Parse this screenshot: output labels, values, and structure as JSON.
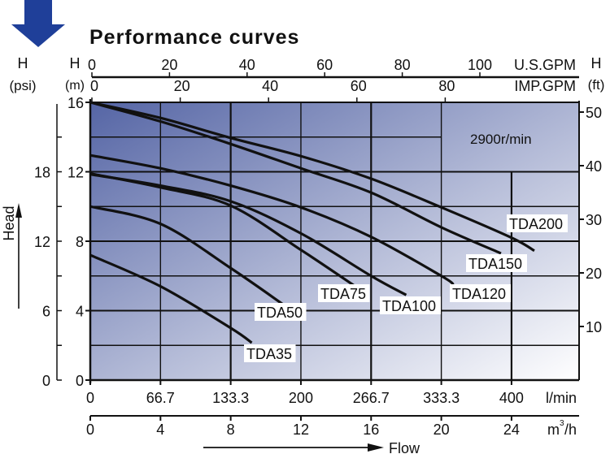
{
  "header": {
    "title": "Performance curves"
  },
  "chart_data": {
    "type": "line",
    "title": "Performance curves",
    "xlabel": "Flow",
    "ylabel": "Head",
    "speed_note": "2900r/min",
    "x_unit": "m3/h",
    "y_unit": "m",
    "xlim": [
      0,
      28
    ],
    "ylim": [
      0,
      16
    ],
    "grid": true,
    "axes": {
      "left_psi": {
        "label": "H",
        "unit": "(psi)",
        "ticks": [
          0,
          6,
          12,
          18
        ]
      },
      "left_m": {
        "label": "H",
        "unit": "(m)",
        "ticks": [
          0,
          4,
          8,
          12,
          16
        ]
      },
      "right_ft": {
        "label": "H",
        "unit": "(ft)",
        "ticks": [
          10,
          20,
          30,
          40,
          50
        ]
      },
      "top_usgpm": {
        "unit": "U.S.GPM",
        "ticks": [
          0,
          20,
          40,
          60,
          80,
          100
        ]
      },
      "top_impgpm": {
        "unit": "IMP.GPM",
        "ticks": [
          0,
          20,
          40,
          60,
          80
        ]
      },
      "bottom_lmin": {
        "unit": "l/min",
        "ticks": [
          "0",
          "66.7",
          "133.3",
          "200",
          "266.7",
          "333.3",
          "400"
        ]
      },
      "bottom_m3h": {
        "unit_base": "m",
        "unit_sup": "3",
        "unit_tail": "/h",
        "ticks": [
          0,
          4,
          8,
          12,
          16,
          20,
          24
        ]
      }
    },
    "series": [
      {
        "name": "TDA35",
        "x": [
          0,
          4,
          8,
          9.2
        ],
        "y": [
          7.2,
          5.4,
          3.0,
          2.15
        ]
      },
      {
        "name": "TDA50",
        "x": [
          0,
          4,
          8,
          11.0
        ],
        "y": [
          10.0,
          9.0,
          6.45,
          4.35
        ]
      },
      {
        "name": "TDA75",
        "x": [
          0,
          4,
          8,
          12,
          15.1
        ],
        "y": [
          11.9,
          11.1,
          10.05,
          7.5,
          5.4
        ]
      },
      {
        "name": "TDA100",
        "x": [
          0,
          4,
          8,
          12,
          16,
          18.0
        ],
        "y": [
          11.85,
          11.2,
          10.3,
          8.45,
          6.0,
          4.9
        ]
      },
      {
        "name": "TDA120",
        "x": [
          0,
          4,
          8,
          12,
          16,
          20,
          20.7
        ],
        "y": [
          12.95,
          12.2,
          11.2,
          9.95,
          8.25,
          6.0,
          5.5
        ]
      },
      {
        "name": "TDA150",
        "x": [
          0,
          4,
          8,
          12,
          16,
          20,
          23.4
        ],
        "y": [
          16.0,
          14.9,
          13.6,
          12.2,
          10.8,
          8.8,
          7.3
        ]
      },
      {
        "name": "TDA200",
        "x": [
          0,
          4,
          8,
          12,
          16,
          20,
          24,
          25.3
        ],
        "y": [
          16.0,
          15.1,
          13.95,
          12.9,
          11.6,
          9.95,
          8.2,
          7.45
        ]
      }
    ]
  },
  "colors": {
    "arrow": "#1f3f99",
    "bg_dark": "#5565a5",
    "curve": "#111111"
  }
}
